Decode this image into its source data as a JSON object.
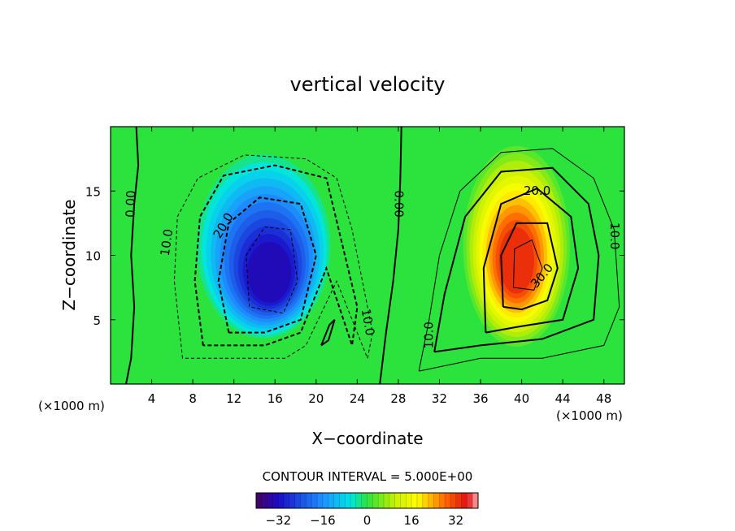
{
  "chart_data": {
    "type": "heatmap",
    "title": "vertical velocity",
    "xlabel": "X−coordinate",
    "ylabel": "Z−coordinate",
    "x_unit_left": "(×1000 m)",
    "x_unit_right": "(×1000 m)",
    "xlim": [
      0,
      50
    ],
    "ylim": [
      0,
      20
    ],
    "x_ticks": [
      4,
      8,
      12,
      16,
      20,
      24,
      28,
      32,
      36,
      40,
      44,
      48
    ],
    "y_ticks": [
      5,
      10,
      15
    ],
    "contour_interval_text": "CONTOUR INTERVAL = 5.000E+00",
    "colorbar": {
      "range": [
        -40,
        40
      ],
      "ticks": [
        -32,
        -16,
        0,
        16,
        32
      ],
      "tick_labels": [
        "−32",
        "−16",
        "0",
        "16",
        "32"
      ]
    },
    "contour_labels": [
      {
        "text": "0.00",
        "x": 2.0,
        "z": 14.0,
        "angle": -88
      },
      {
        "text": "10.0",
        "x": 5.5,
        "z": 11.0,
        "angle": -82
      },
      {
        "text": "20.0",
        "x": 11.0,
        "z": 12.3,
        "angle": -60
      },
      {
        "text": "10.0",
        "x": 25.0,
        "z": 4.8,
        "angle": 80
      },
      {
        "text": "0.00",
        "x": 28.0,
        "z": 14.0,
        "angle": 90
      },
      {
        "text": "20.0",
        "x": 41.5,
        "z": 15.0,
        "angle": 0
      },
      {
        "text": "30.0",
        "x": 42.0,
        "z": 8.4,
        "angle": -50
      },
      {
        "text": "10.0",
        "x": 49.0,
        "z": 11.5,
        "angle": 90
      },
      {
        "text": "10.0",
        "x": 31.0,
        "z": 3.8,
        "angle": -90
      }
    ],
    "cells": [
      {
        "x": 15.5,
        "z": 8.5,
        "sx": 5,
        "sz": 5.5,
        "value": -36
      },
      {
        "x": 39.5,
        "z": 9.5,
        "sx": 4,
        "sz": 6,
        "value": 36
      }
    ],
    "colors": {
      "green": "#2be33c",
      "blue": "#1a0cc8",
      "red": "#e01010"
    }
  }
}
